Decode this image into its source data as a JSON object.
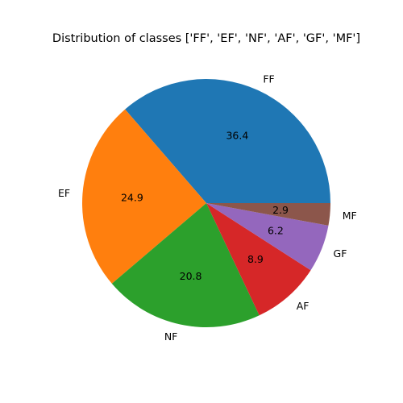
{
  "chart_data": {
    "type": "pie",
    "title": "Distribution of classes ['FF', 'EF', 'NF', 'AF', 'GF', 'MF']",
    "start_angle_deg": 0,
    "direction": "counterclockwise",
    "slices": [
      {
        "label": "FF",
        "value": 36.4,
        "pct_label": "36.4",
        "color": "#1f77b4"
      },
      {
        "label": "EF",
        "value": 24.9,
        "pct_label": "24.9",
        "color": "#ff7f0e"
      },
      {
        "label": "NF",
        "value": 20.8,
        "pct_label": "20.8",
        "color": "#2ca02c"
      },
      {
        "label": "AF",
        "value": 8.9,
        "pct_label": "8.9",
        "color": "#d62728"
      },
      {
        "label": "GF",
        "value": 6.2,
        "pct_label": "6.2",
        "color": "#9467bd"
      },
      {
        "label": "MF",
        "value": 2.9,
        "pct_label": "2.9",
        "color": "#8c564b"
      }
    ]
  }
}
